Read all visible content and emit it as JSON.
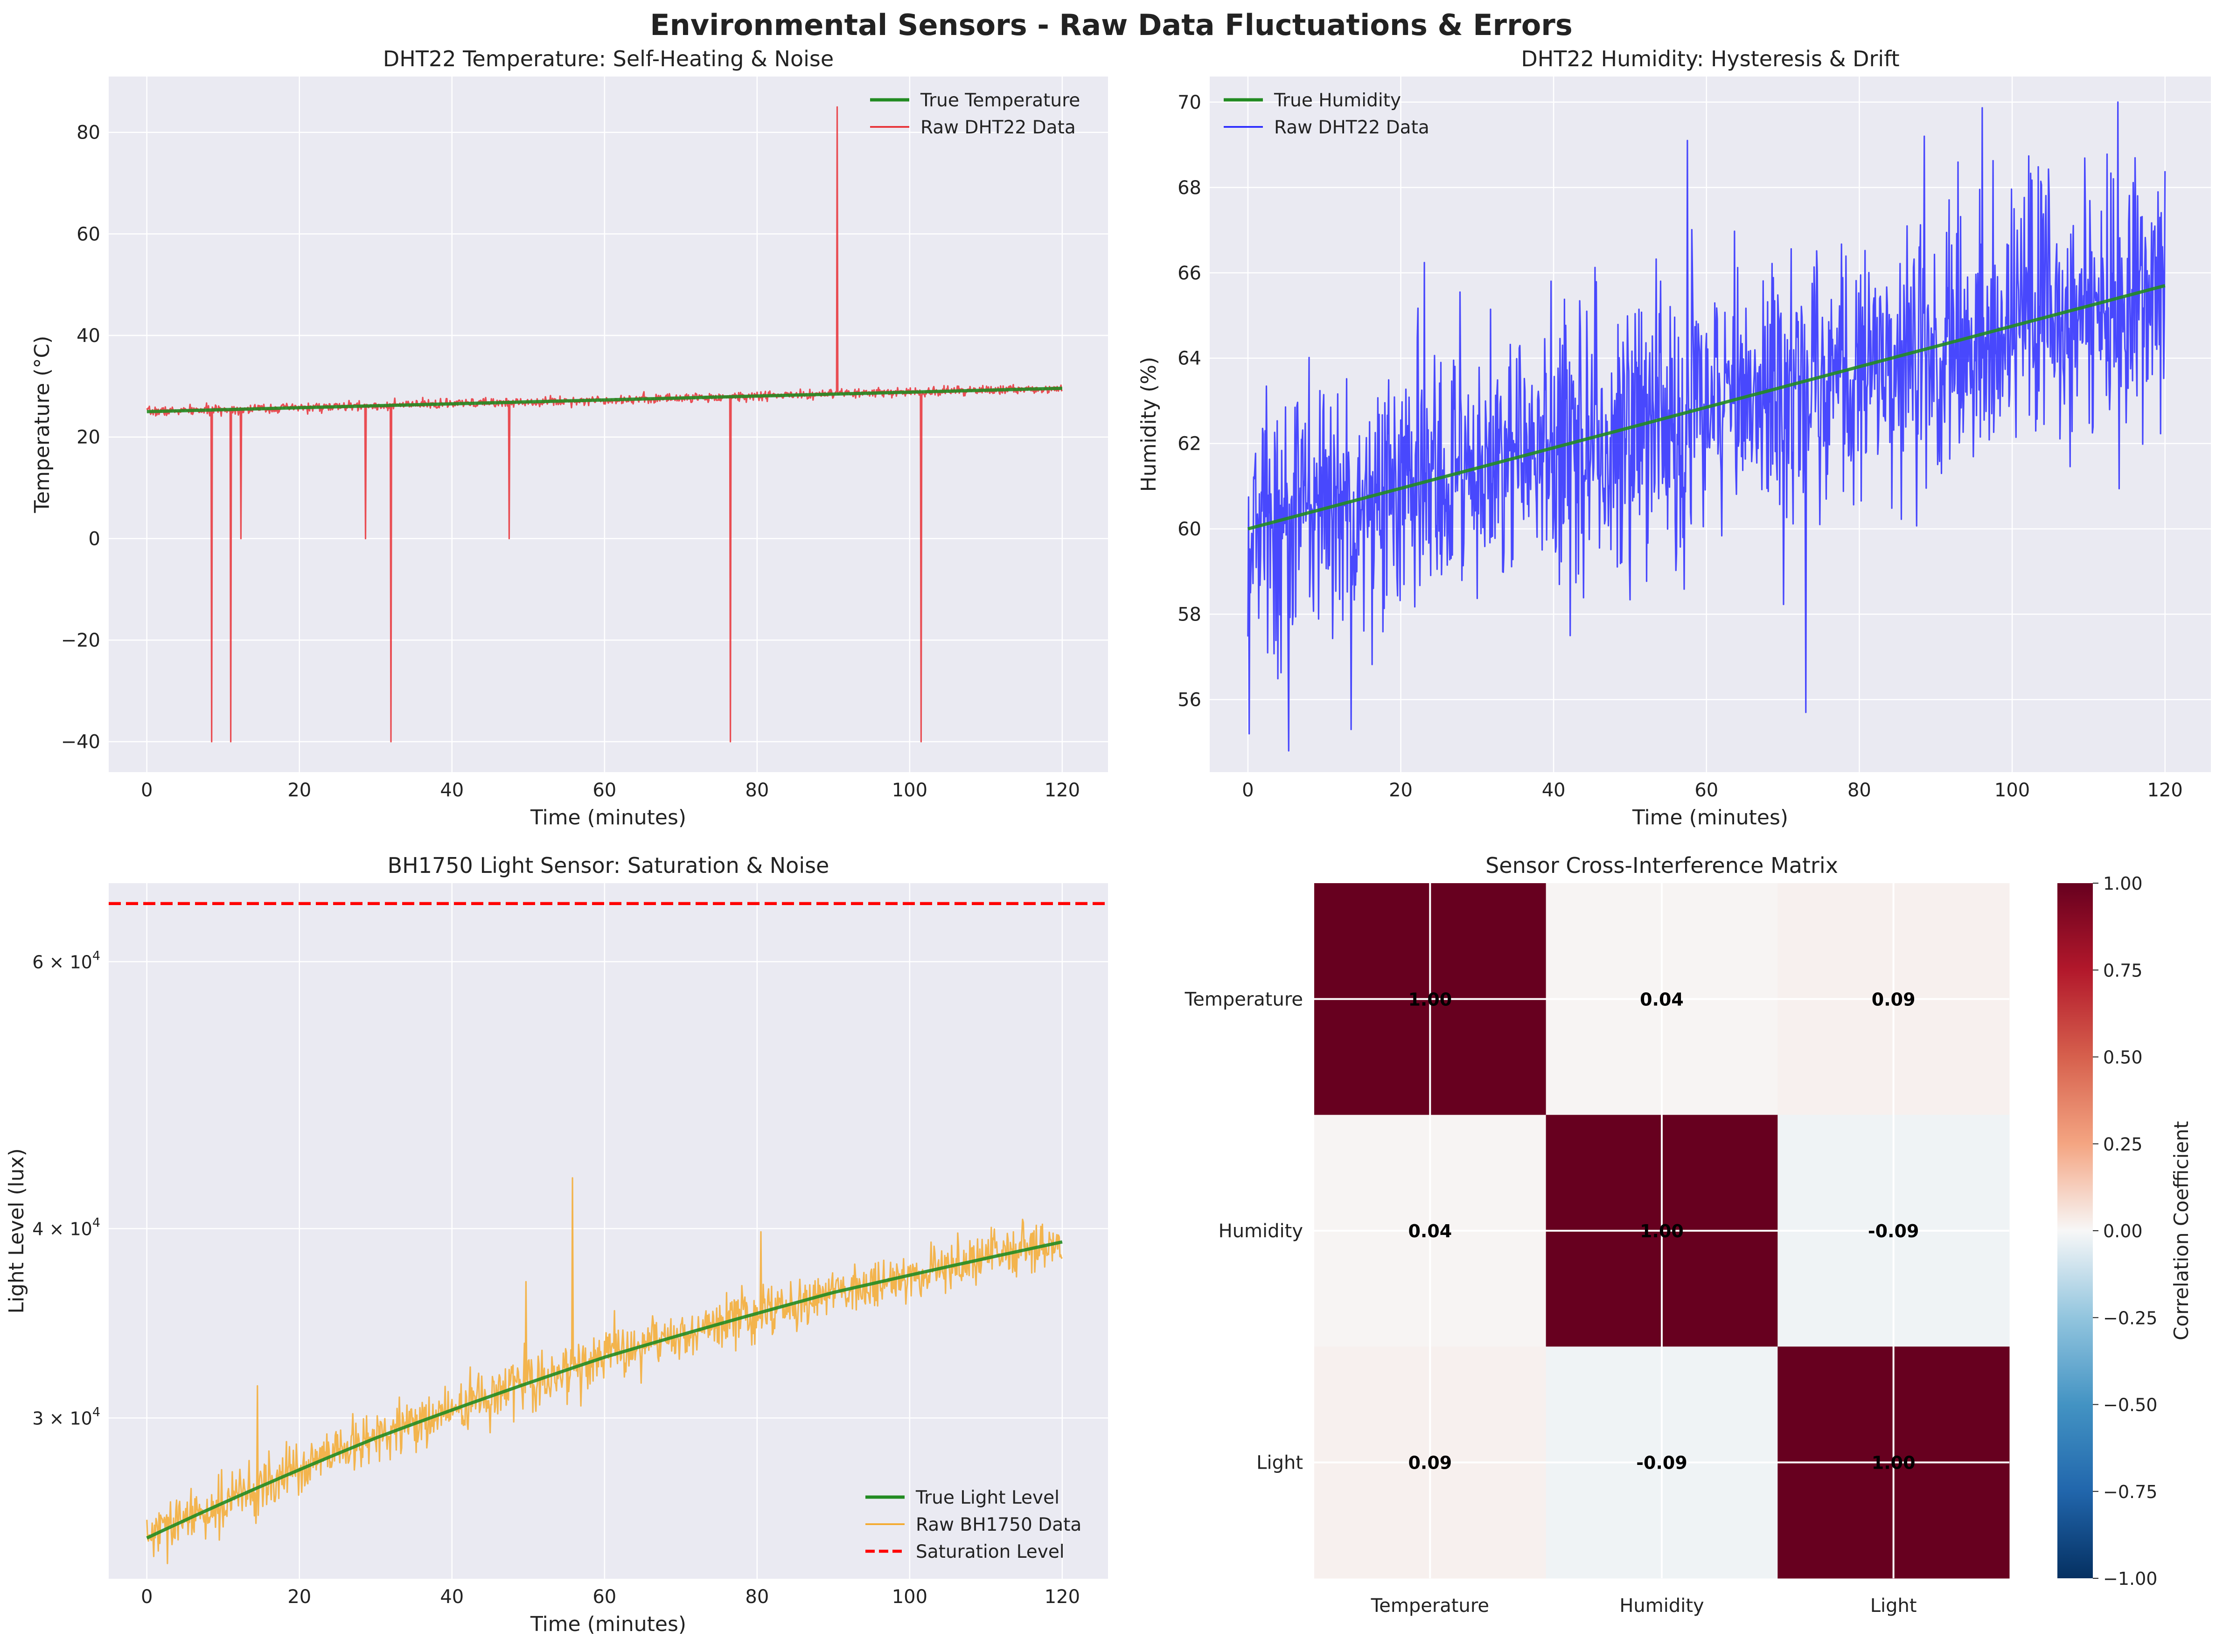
{
  "figure": {
    "suptitle": "Environmental Sensors - Raw Data Fluctuations & Errors"
  },
  "colors": {
    "bg": "#eaeaf2",
    "grid": "#ffffff",
    "true_line": "#228b22",
    "temp_raw": "#e8262b",
    "hum_raw": "#1f1fff",
    "light_raw": "#f5a623",
    "saturation": "#ff0000"
  },
  "chart_data": [
    {
      "id": "temp",
      "type": "line",
      "title": "DHT22 Temperature: Self-Heating & Noise",
      "xlabel": "Time (minutes)",
      "ylabel": "Temperature (°C)",
      "xlim": [
        -5,
        126
      ],
      "ylim": [
        -46,
        91
      ],
      "xticks": [
        0,
        20,
        40,
        60,
        80,
        100,
        120
      ],
      "xtick_labels": [
        "0",
        "20",
        "40",
        "60",
        "80",
        "100",
        "120"
      ],
      "yticks": [
        -40,
        -20,
        0,
        20,
        40,
        60,
        80
      ],
      "ytick_labels": [
        "−40",
        "−20",
        "0",
        "20",
        "40",
        "60",
        "80"
      ],
      "legend": {
        "location": "upper right",
        "entries": [
          "True Temperature",
          "Raw DHT22 Data"
        ]
      },
      "series": [
        {
          "name": "True Temperature",
          "style": "true",
          "x": [
            0,
            120
          ],
          "y": [
            25,
            29.6
          ]
        },
        {
          "name": "Raw DHT22 Data",
          "style": "raw",
          "generator": {
            "from": 0,
            "to": 120,
            "n": 1440,
            "start": 25,
            "end": 29.6,
            "noise": 0.45,
            "seed": 7
          }
        }
      ],
      "spikes": [
        {
          "x": 8.5,
          "y": -40
        },
        {
          "x": 11.0,
          "y": -40
        },
        {
          "x": 12.3,
          "y": 0
        },
        {
          "x": 28.7,
          "y": 0
        },
        {
          "x": 32.0,
          "y": -40
        },
        {
          "x": 47.5,
          "y": 0
        },
        {
          "x": 76.5,
          "y": -40
        },
        {
          "x": 90.5,
          "y": 85
        },
        {
          "x": 101.5,
          "y": -40
        }
      ]
    },
    {
      "id": "hum",
      "type": "line",
      "title": "DHT22 Humidity: Hysteresis & Drift",
      "xlabel": "Time (minutes)",
      "ylabel": "Humidity (%)",
      "xlim": [
        -5,
        126
      ],
      "ylim": [
        54.3,
        70.6
      ],
      "xticks": [
        0,
        20,
        40,
        60,
        80,
        100,
        120
      ],
      "xtick_labels": [
        "0",
        "20",
        "40",
        "60",
        "80",
        "100",
        "120"
      ],
      "yticks": [
        56,
        58,
        60,
        62,
        64,
        66,
        68,
        70
      ],
      "ytick_labels": [
        "56",
        "58",
        "60",
        "62",
        "64",
        "66",
        "68",
        "70"
      ],
      "legend": {
        "location": "upper left",
        "entries": [
          "True Humidity",
          "Raw DHT22 Data"
        ]
      },
      "series": [
        {
          "name": "True Humidity",
          "style": "true",
          "x": [
            0,
            120
          ],
          "y": [
            60,
            65.7
          ]
        },
        {
          "name": "Raw DHT22 Data",
          "style": "raw",
          "generator": {
            "from": 0,
            "to": 120,
            "n": 1440,
            "start": 60,
            "end": 65.7,
            "noise": 1.55,
            "seed": 13
          }
        }
      ],
      "extremes": [
        {
          "x": 0.2,
          "y": 55.2
        },
        {
          "x": 5.3,
          "y": 54.8
        },
        {
          "x": 13.5,
          "y": 55.3
        },
        {
          "x": 57.5,
          "y": 69.1
        },
        {
          "x": 73.0,
          "y": 55.7
        },
        {
          "x": 88.5,
          "y": 69.2
        },
        {
          "x": 113.8,
          "y": 70.0
        }
      ]
    },
    {
      "id": "light",
      "type": "line",
      "title": "BH1750 Light Sensor: Saturation & Noise",
      "xlabel": "Time (minutes)",
      "ylabel": "Light Level (lux)",
      "yscale": "log",
      "xlim": [
        -5,
        126
      ],
      "ylim": [
        23500,
        67600
      ],
      "xticks": [
        0,
        20,
        40,
        60,
        80,
        100,
        120
      ],
      "xtick_labels": [
        "0",
        "20",
        "40",
        "60",
        "80",
        "100",
        "120"
      ],
      "yticks": [
        30000,
        40000,
        60000
      ],
      "ytick_labels": [
        [
          "3",
          "4"
        ],
        [
          "4",
          "4"
        ],
        [
          "6",
          "4"
        ]
      ],
      "ytick_base": "× 10",
      "legend": {
        "location": "lower right",
        "entries": [
          "True Light Level",
          "Raw BH1750 Data",
          "Saturation Level"
        ]
      },
      "saturation": {
        "name": "Saturation Level",
        "y": 65535
      },
      "series": [
        {
          "name": "True Light Level",
          "style": "true",
          "x": [
            0,
            30,
            60,
            90,
            120
          ],
          "y": [
            25000,
            29100,
            32900,
            36300,
            39200
          ]
        },
        {
          "name": "Raw BH1750 Data",
          "style": "raw",
          "generator": {
            "from": 0,
            "to": 120,
            "n": 1200,
            "start": 25000,
            "end": 39200,
            "noise": 0.02,
            "seed": 29
          }
        }
      ],
      "spikes": [
        {
          "x": 14.5,
          "y": 31500
        },
        {
          "x": 49.7,
          "y": 36900
        },
        {
          "x": 55.8,
          "y": 43200
        },
        {
          "x": 80.5,
          "y": 39800
        }
      ]
    },
    {
      "id": "corr",
      "type": "heatmap",
      "title": "Sensor Cross-Interference Matrix",
      "rows": [
        "Temperature",
        "Humidity",
        "Light"
      ],
      "cols": [
        "Temperature",
        "Humidity",
        "Light"
      ],
      "values": [
        [
          1.0,
          0.04,
          0.09
        ],
        [
          0.04,
          1.0,
          -0.09
        ],
        [
          0.09,
          -0.09,
          1.0
        ]
      ],
      "value_labels": [
        [
          "1.00",
          "0.04",
          "0.09"
        ],
        [
          "0.04",
          "1.00",
          "-0.09"
        ],
        [
          "0.09",
          "-0.09",
          "1.00"
        ]
      ],
      "colormap": "RdBu_r",
      "vmin": -1,
      "vmax": 1,
      "colorbar": {
        "label": "Correlation Coefficient",
        "ticks": [
          -1.0,
          -0.75,
          -0.5,
          -0.25,
          0.0,
          0.25,
          0.5,
          0.75,
          1.0
        ],
        "tick_labels": [
          "−1.00",
          "−0.75",
          "−0.50",
          "−0.25",
          "0.00",
          "0.25",
          "0.50",
          "0.75",
          "1.00"
        ]
      }
    }
  ]
}
